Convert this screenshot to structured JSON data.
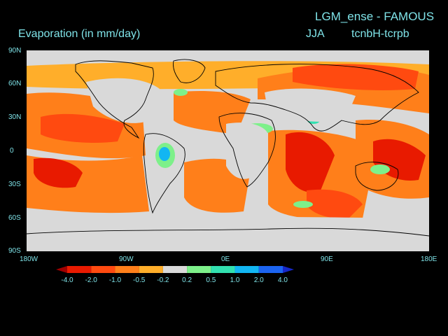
{
  "header": {
    "run_title": "LGM_ense - FAMOUS",
    "variable_title": "Evaporation (in mm/day)",
    "season": "JJA",
    "difference": "tcnbH-tcrpb"
  },
  "lat_labels": [
    "90N",
    "60N",
    "30N",
    "0",
    "30S",
    "60S",
    "90S"
  ],
  "lon_labels": [
    "180W",
    "90W",
    "0E",
    "90E",
    "180E"
  ],
  "colorbar": {
    "levels": [
      "-4.0",
      "-2.0",
      "-1.0",
      "-0.5",
      "-0.2",
      "0.2",
      "0.5",
      "1.0",
      "2.0",
      "4.0"
    ],
    "colors": [
      "#a00000",
      "#e81a00",
      "#ff4a10",
      "#ff7f1a",
      "#ffae2a",
      "#d9d9d9",
      "#7df08a",
      "#32e0b0",
      "#12b6f2",
      "#1c64f0",
      "#1628c8"
    ]
  },
  "map": {
    "background_color": "#d9d9d9",
    "coast_color": "#000000"
  }
}
